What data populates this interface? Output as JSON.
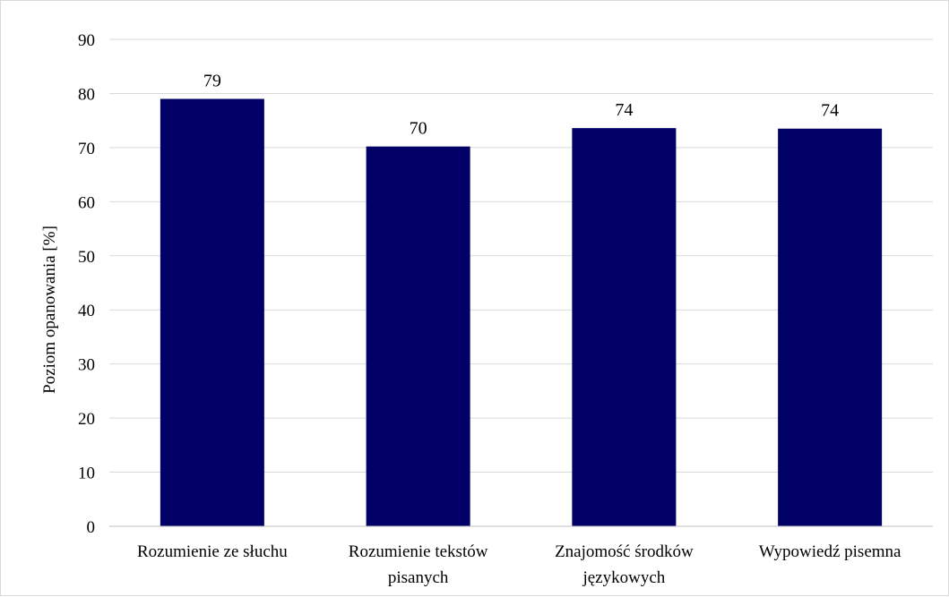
{
  "chart_data": {
    "type": "bar",
    "title": "",
    "xlabel": "",
    "ylabel": "Poziom opanowania [%]",
    "ylim": [
      0,
      90
    ],
    "yticks": [
      0,
      10,
      20,
      30,
      40,
      50,
      60,
      70,
      80,
      90
    ],
    "grid": true,
    "legend": "none",
    "categories": [
      [
        "Rozumienie ze słuchu"
      ],
      [
        "Rozumienie tekstów",
        "pisanych"
      ],
      [
        "Znajomość środków",
        "językowych"
      ],
      [
        "Wypowiedź pisemna"
      ]
    ],
    "values": [
      79,
      70.2,
      73.6,
      73.5
    ],
    "data_labels": [
      "79",
      "70",
      "74",
      "74"
    ],
    "colors": {
      "bar": "#000066",
      "grid": "#d9d9d9",
      "axis": "#bfbfbf",
      "text": "#000000"
    }
  }
}
